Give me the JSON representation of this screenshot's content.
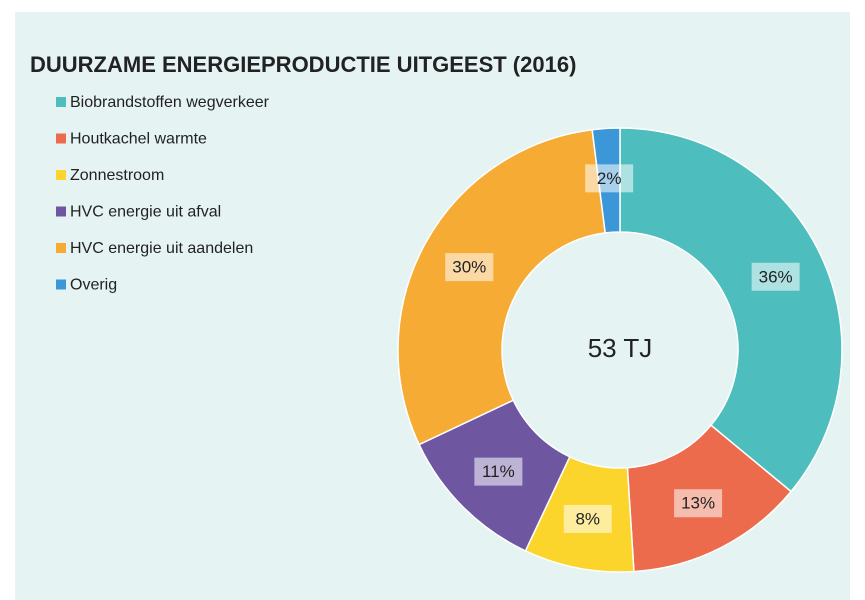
{
  "chart_data": {
    "type": "donut",
    "title": "DUURZAME ENERGIEPRODUCTIE UITGEEST (2016)",
    "center_label": "53 TJ",
    "categories": [
      "Biobrandstoffen wegverkeer",
      "Houtkachel warmte",
      "Zonnestroom",
      "HVC energie uit afval",
      "HVC energie uit aandelen",
      "Overig"
    ],
    "values": [
      36,
      13,
      8,
      11,
      30,
      2
    ],
    "value_labels": [
      "36%",
      "13%",
      "8%",
      "11%",
      "30%",
      "2%"
    ],
    "colors": [
      "#4dbdbd",
      "#ec6b4d",
      "#fcd52c",
      "#6e57a0",
      "#f6ab35",
      "#3c97d8"
    ],
    "legend": "top-left"
  }
}
